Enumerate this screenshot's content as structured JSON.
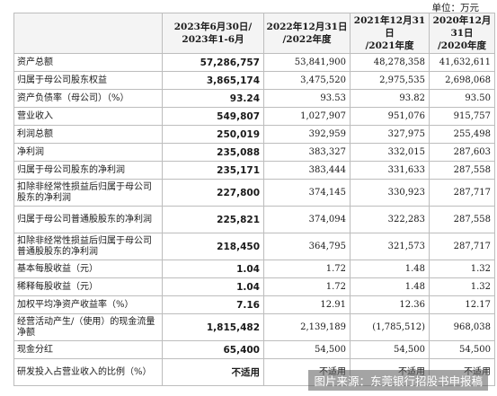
{
  "unit_label": "单位：万元",
  "headers": [
    "",
    "2023年6月30日/\n2023年1-6月",
    "2022年12月31日\n/2022年度",
    "2021年12月31日\n/2021年度",
    "2020年12月\n31日\n/2020年度"
  ],
  "rows": [
    {
      "label": "资产总额",
      "values": [
        "57,286,757",
        "53,841,900",
        "48,278,358",
        "41,632,611"
      ]
    },
    {
      "label": "归属于母公司股东权益",
      "values": [
        "3,865,174",
        "3,475,520",
        "2,975,535",
        "2,698,068"
      ]
    },
    {
      "label": "资产负债率（母公司）（%）",
      "values": [
        "93.24",
        "93.53",
        "93.82",
        "93.50"
      ]
    },
    {
      "label": "营业收入",
      "values": [
        "549,807",
        "1,027,907",
        "951,076",
        "915,757"
      ]
    },
    {
      "label": "利润总额",
      "values": [
        "250,019",
        "392,959",
        "327,975",
        "255,498"
      ]
    },
    {
      "label": "净利润",
      "values": [
        "235,088",
        "383,327",
        "332,015",
        "287,603"
      ]
    },
    {
      "label": "归属于母公司股东的净利润",
      "values": [
        "235,171",
        "383,444",
        "331,633",
        "287,558"
      ]
    },
    {
      "label": "扣除非经常性损益后归属于母公司股东的净利润",
      "values": [
        "227,800",
        "374,145",
        "330,923",
        "287,717"
      ]
    },
    {
      "label": "归属于母公司普通股股东的净利润",
      "values": [
        "225,821",
        "374,094",
        "322,283",
        "287,558"
      ]
    },
    {
      "label": "扣除非经常性损益后归属于母公司普通股股东的净利润",
      "values": [
        "218,450",
        "364,795",
        "321,573",
        "287,717"
      ]
    },
    {
      "label": "基本每股收益（元）",
      "values": [
        "1.04",
        "1.72",
        "1.48",
        "1.32"
      ]
    },
    {
      "label": "稀释每股收益（元）",
      "values": [
        "1.04",
        "1.72",
        "1.48",
        "1.32"
      ]
    },
    {
      "label": "加权平均净资产收益率（%）",
      "values": [
        "7.16",
        "12.91",
        "12.36",
        "12.17"
      ]
    },
    {
      "label": "经营活动产生/（使用）的现金流量净额",
      "values": [
        "1,815,482",
        "2,139,189",
        "(1,785,512)",
        "968,038"
      ]
    },
    {
      "label": "现金分红",
      "values": [
        "65,400",
        "54,500",
        "54,500",
        "54,500"
      ]
    },
    {
      "label": "研发投入占营业收入的比例（%）",
      "values": [
        "不适用",
        "不适用",
        "不适用",
        "不适用"
      ]
    }
  ],
  "tall_rows": [
    7,
    8,
    9,
    13,
    15
  ],
  "watermark": "图片来源：东莞银行招股书申报稿"
}
